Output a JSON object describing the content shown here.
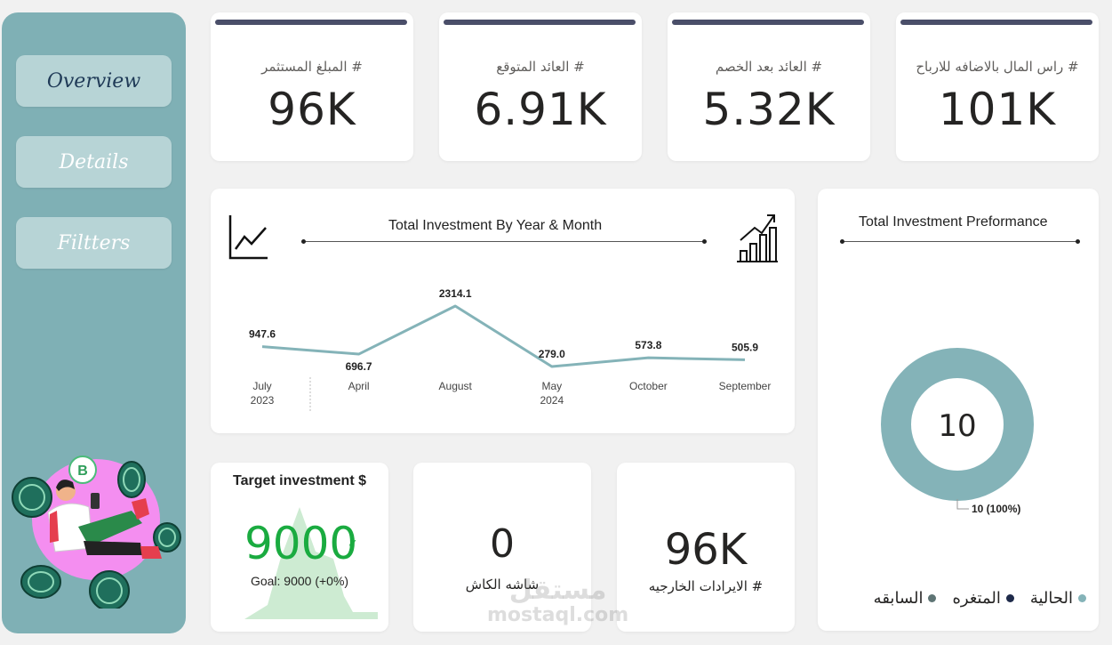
{
  "sidebar": {
    "items": [
      {
        "label": "Overview"
      },
      {
        "label": "Details"
      },
      {
        "label": "Filtters"
      }
    ]
  },
  "kpis": [
    {
      "label": "# المبلغ المستثمر",
      "value": "96K"
    },
    {
      "label": "# العائد المتوقع",
      "value": "6.91K"
    },
    {
      "label": "# العائد بعد الخصم",
      "value": "5.32K"
    },
    {
      "label": "# راس المال بالاضافه للارباح",
      "value": "101K"
    }
  ],
  "line_card": {
    "title": "Total Investment  By Year  &  Month"
  },
  "perf_card": {
    "title": "Total Investment  Preformance",
    "center_value": "10",
    "data_label": "10 (100%)",
    "legend": [
      {
        "label": "الحالية",
        "color": "#84b3b8"
      },
      {
        "label": "المتغره",
        "color": "#1e2a4a"
      },
      {
        "label": "السابقه",
        "color": "#5e7474"
      }
    ]
  },
  "target": {
    "title": "Target investment $",
    "value": "9000",
    "goal": "Goal: 9000 (+0%)",
    "color": "#1aab40"
  },
  "cash": {
    "value": "0",
    "label": "شاشه الكاش"
  },
  "revenue": {
    "value": "96K",
    "label": "#  الايرادات الخارجيه"
  },
  "watermark": {
    "line1": "مستقل",
    "line2": "mostaql.com"
  },
  "chart_data": [
    {
      "type": "line",
      "title": "Total Investment  By Year  &  Month",
      "categories": [
        "July",
        "April",
        "August",
        "May",
        "October",
        "September"
      ],
      "year_labels": [
        "2023",
        "",
        "",
        "2024",
        "",
        ""
      ],
      "values": [
        947.6,
        696.7,
        2314.1,
        279.0,
        573.8,
        505.9
      ],
      "value_labels": [
        "947.6",
        "696.7",
        "2314.1",
        "279.0",
        "573.8",
        "505.9"
      ],
      "color": "#84b3b8",
      "grid": false
    },
    {
      "type": "pie",
      "title": "Total Investment  Preformance",
      "labels": [
        "الحالية"
      ],
      "values": [
        10
      ],
      "color": "#84b3b8"
    }
  ]
}
